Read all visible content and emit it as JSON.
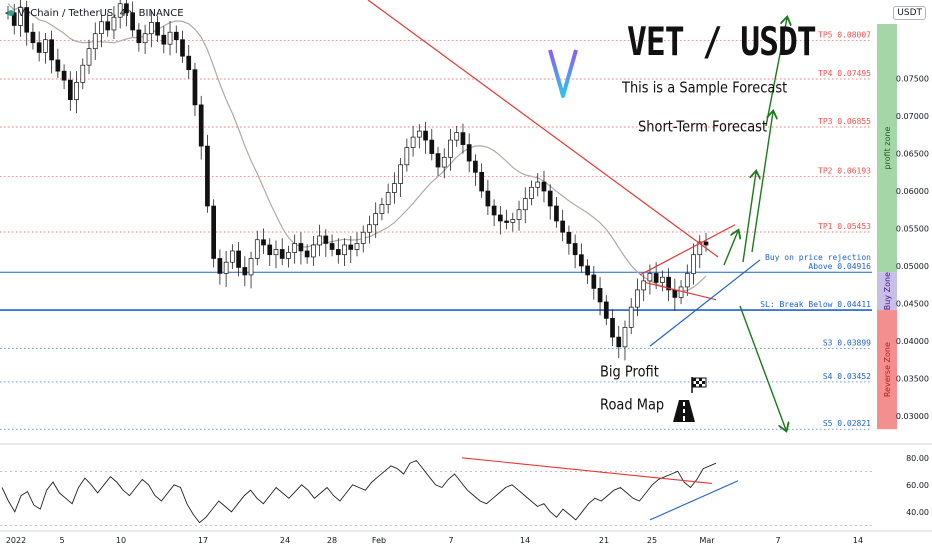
{
  "header": {
    "symbol_line": "VeChain / TetherUS, 4h, BINANCE",
    "badge": "USDT"
  },
  "annotations": {
    "title": "VET / USDT",
    "sample": "This is a Sample Forecast",
    "short_term": "Short-Term Forecast",
    "big_profit": "Big Profit",
    "road_map": "Road Map",
    "profit_zone": "profit zone",
    "buy_zone": "Buy Zone",
    "reverse_zone": "Reverse Zone"
  },
  "chart_data": {
    "type": "line",
    "title": "VET / USDT",
    "x_ticks": [
      "2022",
      "5",
      "10",
      "17",
      "24",
      "28",
      "Feb",
      "7",
      "14",
      "21",
      "25",
      "Mar",
      "7",
      "14"
    ],
    "price_axis": {
      "ticks": [
        "0.07500",
        "0.07000",
        "0.06500",
        "0.06000",
        "0.05500",
        "0.05000",
        "0.04500",
        "0.04000",
        "0.03500",
        "0.03000"
      ],
      "ylim": [
        0.0265,
        0.0855
      ]
    },
    "levels": [
      {
        "label": "TP5",
        "value": 0.08007,
        "text": "TP5 0.08007",
        "color": "#ef5350"
      },
      {
        "label": "TP4",
        "value": 0.07495,
        "text": "TP4 0.07495",
        "color": "#ef5350"
      },
      {
        "label": "TP3",
        "value": 0.06855,
        "text": "TP3 0.06855",
        "color": "#ef5350"
      },
      {
        "label": "TP2",
        "value": 0.06193,
        "text": "TP2 0.06193",
        "color": "#ef5350"
      },
      {
        "label": "TP1",
        "value": 0.05453,
        "text": "TP1 0.05453",
        "color": "#ef5350"
      },
      {
        "label": "Buy",
        "value": 0.04916,
        "text": "Above 0.04916",
        "color": "#1e63c8",
        "extra": "Buy on price rejection"
      },
      {
        "label": "SL",
        "value": 0.04411,
        "text": "SL: Break Below 0.04411",
        "color": "#1e63c8"
      },
      {
        "label": "S3",
        "value": 0.03899,
        "text": "S3 0.03899",
        "color": "#1e63c8"
      },
      {
        "label": "S4",
        "value": 0.03452,
        "text": "S4 0.03452",
        "color": "#1e63c8"
      },
      {
        "label": "S5",
        "value": 0.02821,
        "text": "S5 0.02821",
        "color": "#1e63c8"
      }
    ],
    "price_series": [
      0.0838,
      0.0821,
      0.0845,
      0.0812,
      0.0798,
      0.0785,
      0.0802,
      0.0775,
      0.076,
      0.0748,
      0.0722,
      0.0745,
      0.0768,
      0.079,
      0.081,
      0.0826,
      0.0815,
      0.0832,
      0.085,
      0.0838,
      0.0815,
      0.0798,
      0.081,
      0.0825,
      0.0808,
      0.0796,
      0.0812,
      0.0802,
      0.078,
      0.0762,
      0.0715,
      0.066,
      0.058,
      0.051,
      0.049,
      0.0505,
      0.052,
      0.0498,
      0.0488,
      0.051,
      0.0535,
      0.0528,
      0.0515,
      0.0522,
      0.051,
      0.0518,
      0.053,
      0.052,
      0.0512,
      0.0528,
      0.054,
      0.053,
      0.0522,
      0.0515,
      0.0528,
      0.0522,
      0.053,
      0.0545,
      0.0555,
      0.057,
      0.0582,
      0.0598,
      0.061,
      0.0635,
      0.0658,
      0.0672,
      0.068,
      0.0668,
      0.065,
      0.0632,
      0.0645,
      0.0668,
      0.0678,
      0.0662,
      0.064,
      0.0625,
      0.06,
      0.058,
      0.0568,
      0.056,
      0.0558,
      0.0562,
      0.0575,
      0.059,
      0.0605,
      0.0612,
      0.06,
      0.058,
      0.056,
      0.0545,
      0.053,
      0.0515,
      0.05,
      0.0488,
      0.047,
      0.0452,
      0.043,
      0.0405,
      0.0392,
      0.0418,
      0.0445,
      0.0468,
      0.048,
      0.049,
      0.0478,
      0.0485,
      0.0468,
      0.0458,
      0.0472,
      0.049,
      0.0515,
      0.0532,
      0.0528
    ],
    "indicator": {
      "name": "RSI",
      "ticks": [
        "80.00",
        "60.00",
        "40.00"
      ],
      "ylim": [
        28,
        88
      ],
      "series": [
        58,
        48,
        40,
        52,
        55,
        45,
        42,
        56,
        62,
        54,
        50,
        46,
        58,
        65,
        60,
        54,
        60,
        66,
        62,
        56,
        52,
        58,
        64,
        60,
        52,
        48,
        54,
        60,
        58,
        46,
        38,
        32,
        36,
        42,
        48,
        44,
        40,
        46,
        52,
        56,
        50,
        46,
        52,
        58,
        54,
        50,
        55,
        60,
        56,
        50,
        54,
        58,
        52,
        48,
        54,
        60,
        58,
        56,
        62,
        66,
        70,
        74,
        72,
        68,
        76,
        78,
        72,
        66,
        60,
        58,
        64,
        68,
        62,
        56,
        52,
        48,
        46,
        50,
        54,
        58,
        60,
        56,
        52,
        48,
        44,
        46,
        40,
        36,
        42,
        38,
        34,
        40,
        46,
        50,
        48,
        52,
        56,
        58,
        54,
        50,
        48,
        54,
        60,
        64,
        66,
        68,
        70,
        62,
        58,
        64,
        72,
        74,
        76
      ]
    }
  }
}
